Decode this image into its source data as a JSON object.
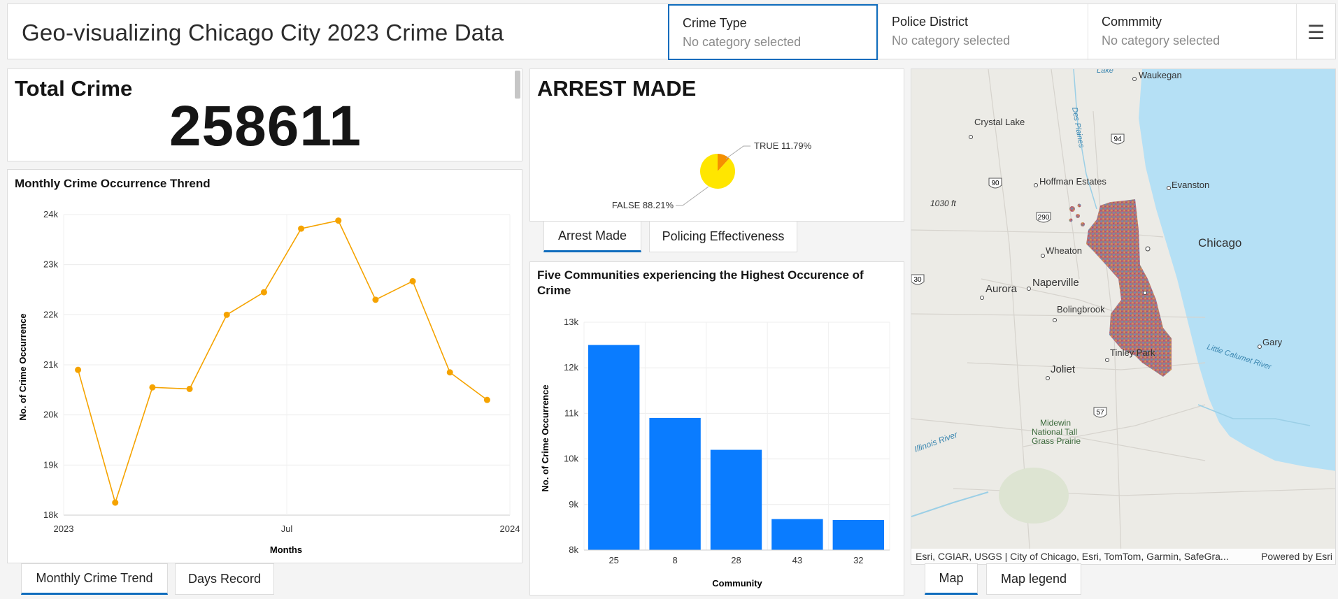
{
  "header": {
    "title": "Geo-visualizing Chicago City 2023 Crime Data",
    "selectors": [
      {
        "label": "Crime Type",
        "value": "No category selected"
      },
      {
        "label": "Police District",
        "value": "No category selected"
      },
      {
        "label": "Commmity",
        "value": "No category selected"
      }
    ],
    "menu_icon": "hamburger-icon"
  },
  "total": {
    "title": "Total Crime",
    "value": "258611"
  },
  "trend": {
    "title": "Monthly Crime Occurrence Thrend",
    "tabs": [
      "Monthly Crime Trend",
      "Days Record"
    ]
  },
  "arrest": {
    "title": "ARREST MADE",
    "tabs": [
      "Arrest Made",
      "Policing Effectiveness"
    ]
  },
  "communities": {
    "title": "Five Communities experiencing the Highest Occurence of Crime"
  },
  "map": {
    "attribution": "Esri, CGIAR, USGS | City of Chicago, Esri, TomTom, Garmin, SafeGra...",
    "powered_by": "Powered by Esri",
    "tabs": [
      "Map",
      "Map legend"
    ],
    "labels": {
      "waukegan": "Waukegan",
      "crystal_lake": "Crystal Lake",
      "hoffman": "Hoffman Estates",
      "evanston": "Evanston",
      "elevation": "1030 ft",
      "chicago": "Chicago",
      "wheaton": "Wheaton",
      "aurora": "Aurora",
      "naperville": "Naperville",
      "bolingbrook": "Bolingbrook",
      "gary": "Gary",
      "tinley": "Tinley Park",
      "joliet": "Joliet",
      "midewin1": "Midewin",
      "midewin2": "National Tall",
      "midewin3": "Grass Prairie",
      "illinois_river": "Illinois River",
      "des_plaines": "Des Plaines",
      "little_calumet": "Little Calumet River",
      "lake": "Lake",
      "hw94": "94",
      "hw90": "90",
      "hw290": "290",
      "hw30": "30",
      "hw57": "57"
    },
    "colors": {
      "water": "#b5e0f5",
      "land": "#ecebe6",
      "crime_points": "#c36a6a"
    }
  },
  "chart_data": [
    {
      "type": "line",
      "title": "Monthly Crime Occurrence Thrend",
      "xlabel": "Months",
      "ylabel": "No. of Crime Occurrence",
      "x_ticks": [
        "2023",
        "Jul",
        "2024"
      ],
      "y_ticks": [
        "24k",
        "23k",
        "22k",
        "21k",
        "20k",
        "19k",
        "18k"
      ],
      "ylim": [
        18000,
        24000
      ],
      "series": [
        {
          "x": [
            "2023-01",
            "2023-02",
            "2023-03",
            "2023-04",
            "2023-05",
            "2023-06",
            "2023-07",
            "2023-08",
            "2023-09",
            "2023-10",
            "2023-11",
            "2023-12"
          ],
          "values": [
            20900,
            18250,
            20550,
            20520,
            22000,
            22450,
            23720,
            23880,
            22300,
            22670,
            20850,
            20300
          ],
          "color": "#f5a300"
        }
      ],
      "grid": true
    },
    {
      "type": "pie",
      "title": "ARREST MADE",
      "slices": [
        {
          "label": "TRUE",
          "value": 11.79,
          "display": "TRUE 11.79%",
          "color": "#f59000"
        },
        {
          "label": "FALSE",
          "value": 88.21,
          "display": "FALSE 88.21%",
          "color": "#ffe600"
        }
      ]
    },
    {
      "type": "bar",
      "title": "Five Communities experiencing the Highest Occurence of Crime",
      "xlabel": "Community",
      "ylabel": "No. of Crime Occurrence",
      "categories": [
        "25",
        "8",
        "28",
        "43",
        "32"
      ],
      "values": [
        12500,
        10900,
        10200,
        8680,
        8660
      ],
      "y_ticks": [
        "13k",
        "12k",
        "11k",
        "10k",
        "9k",
        "8k"
      ],
      "ylim": [
        8000,
        13000
      ],
      "color": "#0a7cff",
      "grid": true
    }
  ]
}
